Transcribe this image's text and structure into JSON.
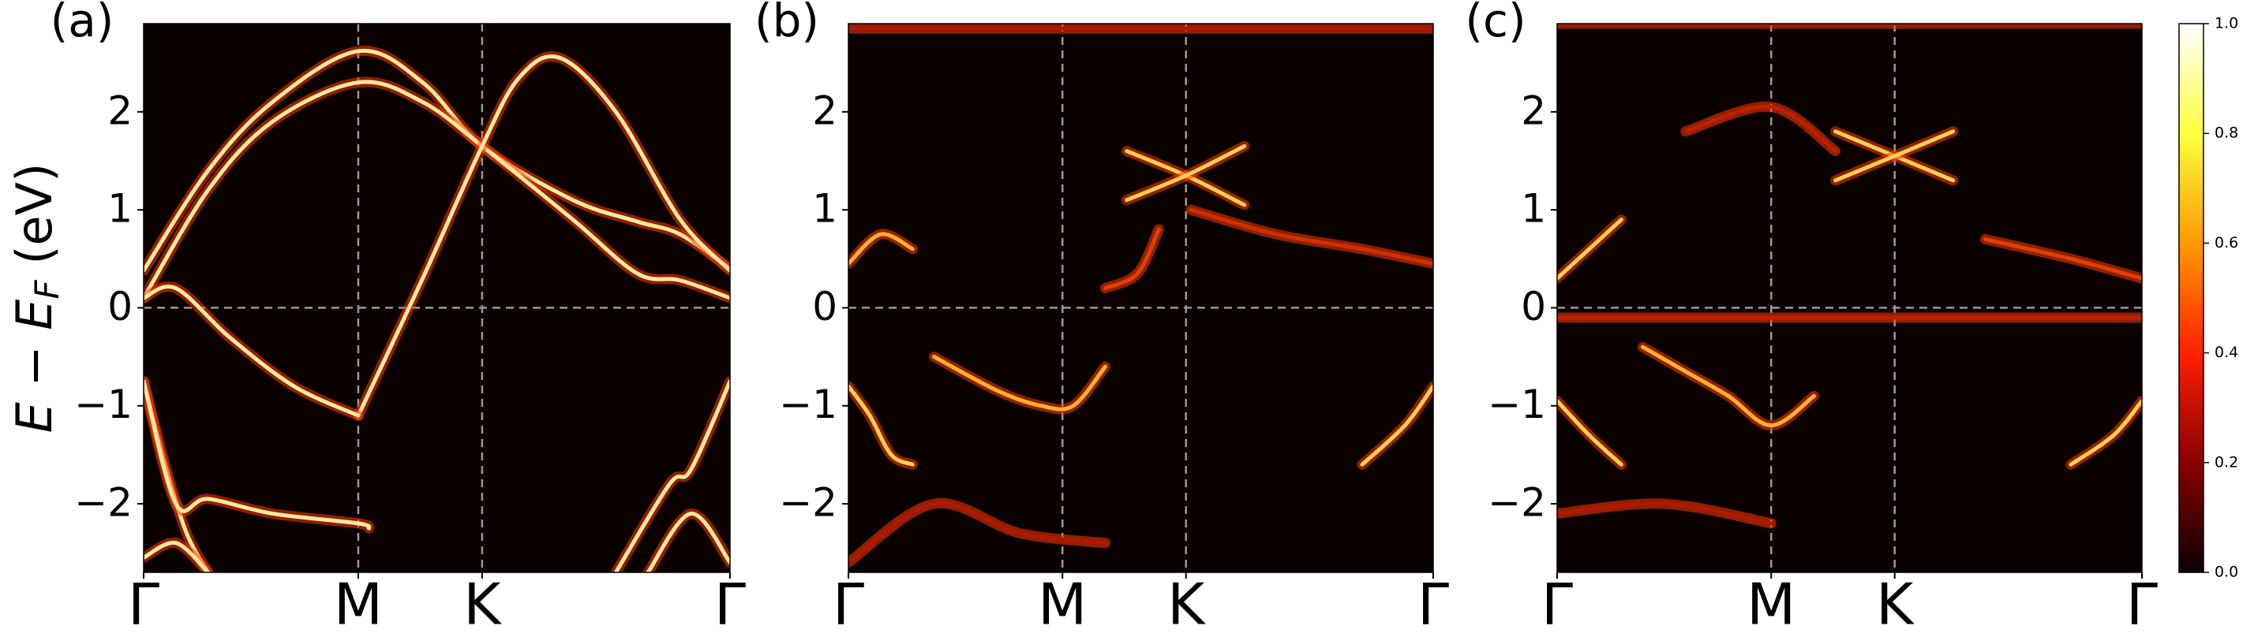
{
  "chart_data": [
    {
      "type": "line",
      "title": "(a)",
      "y_label": {
        "var": "E",
        "minus": " − ",
        "ref": "E",
        "sub": "F",
        "unit": " (eV)"
      },
      "xlim": [
        0,
        2.732
      ],
      "xticks": [
        {
          "value": 0,
          "label": "Γ"
        },
        {
          "value": 1,
          "label": "M"
        },
        {
          "value": 1.577,
          "label": "K"
        },
        {
          "value": 2.732,
          "label": "Γ"
        }
      ],
      "ylim": [
        -2.7,
        2.9
      ],
      "yticks": [
        {
          "value": -2,
          "label": "−2"
        },
        {
          "value": -1,
          "label": "−1"
        },
        0,
        1,
        2
      ],
      "hlines": [
        0
      ],
      "series": [
        {
          "color": "#ffe9a0",
          "x": [
            0,
            0.3,
            0.6,
            1,
            1.3,
            1.577,
            2.0,
            2.3,
            2.5,
            2.732
          ],
          "values": [
            0.38,
            1.4,
            2.1,
            2.62,
            2.3,
            1.65,
            1.1,
            0.88,
            0.75,
            0.4
          ]
        },
        {
          "color": "#ffe9a0",
          "x": [
            0,
            0.3,
            0.6,
            1,
            1.3,
            1.577,
            2.0,
            2.3,
            2.5,
            2.732
          ],
          "values": [
            0.1,
            1.2,
            1.9,
            2.3,
            2.1,
            1.65,
            0.9,
            0.35,
            0.28,
            0.1
          ]
        },
        {
          "color": "#ffe9a0",
          "x": [
            1,
            1.3,
            1.577,
            1.75,
            1.94,
            2.2,
            2.5,
            2.732
          ],
          "values": [
            -1.1,
            0.3,
            1.65,
            2.35,
            2.55,
            2.0,
            0.9,
            0.38
          ]
        },
        {
          "color": "#ffe9a0",
          "x": [
            0,
            0.15,
            0.4,
            0.7,
            1
          ],
          "values": [
            0.1,
            0.2,
            -0.3,
            -0.8,
            -1.1
          ]
        },
        {
          "color": "#ffe9a0",
          "x": [
            0,
            0.1,
            0.2,
            0.3
          ],
          "values": [
            -0.75,
            -1.6,
            -2.3,
            -2.7
          ]
        },
        {
          "color": "#ffe9a0",
          "x": [
            0,
            0.15,
            0.3,
            0.6,
            1,
            1.05
          ],
          "values": [
            -0.75,
            -2.0,
            -1.95,
            -2.1,
            -2.2,
            -2.25
          ]
        },
        {
          "color": "#ffe9a0",
          "x": [
            0,
            0.15,
            0.3
          ],
          "values": [
            -2.55,
            -2.4,
            -2.7
          ]
        },
        {
          "color": "#ffe9a0",
          "x": [
            2.2,
            2.45,
            2.55,
            2.732
          ],
          "values": [
            -2.7,
            -1.8,
            -1.65,
            -0.75
          ]
        },
        {
          "color": "#ffe9a0",
          "x": [
            2.35,
            2.55,
            2.732
          ],
          "values": [
            -2.7,
            -2.1,
            -2.6
          ]
        }
      ]
    },
    {
      "type": "line",
      "title": "(b)",
      "xlim": [
        0,
        2.732
      ],
      "xticks": [
        {
          "value": 0,
          "label": "Γ"
        },
        {
          "value": 1,
          "label": "M"
        },
        {
          "value": 1.577,
          "label": "K"
        },
        {
          "value": 2.732,
          "label": "Γ"
        }
      ],
      "ylim": [
        -2.7,
        2.9
      ],
      "yticks": [
        {
          "value": -2,
          "label": "−2"
        },
        {
          "value": -1,
          "label": "−1"
        },
        0,
        1,
        2
      ],
      "hlines": [
        0
      ],
      "series": [
        {
          "color": "#ffd050",
          "x": [
            0,
            0.1,
            0.2,
            0.3
          ],
          "values": [
            -0.8,
            -1.1,
            -1.5,
            -1.6
          ]
        },
        {
          "color": "#ffb030",
          "x": [
            0.4,
            0.7,
            0.9,
            1.05,
            1.2
          ],
          "values": [
            -0.5,
            -0.85,
            -1.0,
            -1.0,
            -0.6
          ]
        },
        {
          "color": "#ffd050",
          "x": [
            1.3,
            1.577,
            1.85
          ],
          "values": [
            1.6,
            1.35,
            1.05
          ]
        },
        {
          "color": "#ffd050",
          "x": [
            1.3,
            1.577,
            1.85
          ],
          "values": [
            1.1,
            1.35,
            1.65
          ]
        },
        {
          "color": "#ffd050",
          "x": [
            2.4,
            2.6,
            2.732
          ],
          "values": [
            -1.6,
            -1.2,
            -0.8
          ]
        },
        {
          "color": "#b01800",
          "x": [
            0,
            2.732
          ],
          "values": [
            2.85,
            2.85
          ]
        },
        {
          "color": "#d03000",
          "x": [
            1.6,
            2.0,
            2.4,
            2.732
          ],
          "values": [
            1.0,
            0.75,
            0.6,
            0.45
          ]
        },
        {
          "color": "#ffb030",
          "x": [
            0,
            0.15,
            0.3
          ],
          "values": [
            0.45,
            0.75,
            0.6
          ]
        },
        {
          "color": "#b01800",
          "x": [
            0,
            0.4,
            0.8,
            1.2
          ],
          "values": [
            -2.6,
            -2.0,
            -2.3,
            -2.4
          ]
        },
        {
          "color": "#e04000",
          "x": [
            1.2,
            1.35,
            1.45
          ],
          "values": [
            0.2,
            0.35,
            0.8
          ]
        }
      ]
    },
    {
      "type": "line",
      "title": "(c)",
      "xlim": [
        0,
        2.732
      ],
      "xticks": [
        {
          "value": 0,
          "label": "Γ"
        },
        {
          "value": 1,
          "label": "M"
        },
        {
          "value": 1.577,
          "label": "K"
        },
        {
          "value": 2.732,
          "label": "Γ"
        }
      ],
      "ylim": [
        -2.7,
        2.9
      ],
      "yticks": [
        {
          "value": -2,
          "label": "−2"
        },
        {
          "value": -1,
          "label": "−1"
        },
        0,
        1,
        2
      ],
      "hlines": [
        0
      ],
      "series": [
        {
          "color": "#ffd050",
          "x": [
            0,
            0.15,
            0.3
          ],
          "values": [
            0.3,
            0.6,
            0.9
          ]
        },
        {
          "color": "#ffd050",
          "x": [
            0,
            0.15,
            0.3
          ],
          "values": [
            -0.95,
            -1.3,
            -1.6
          ]
        },
        {
          "color": "#ffb030",
          "x": [
            0.4,
            0.6,
            0.8,
            1,
            1.2
          ],
          "values": [
            -0.4,
            -0.65,
            -0.9,
            -1.2,
            -0.9
          ]
        },
        {
          "color": "#ffd050",
          "x": [
            1.3,
            1.577,
            1.85
          ],
          "values": [
            1.8,
            1.55,
            1.3
          ]
        },
        {
          "color": "#ffd050",
          "x": [
            1.3,
            1.577,
            1.85
          ],
          "values": [
            1.3,
            1.55,
            1.8
          ]
        },
        {
          "color": "#ffd050",
          "x": [
            2.4,
            2.6,
            2.732
          ],
          "values": [
            -1.6,
            -1.3,
            -0.95
          ]
        },
        {
          "color": "#e04000",
          "x": [
            2.0,
            2.4,
            2.732
          ],
          "values": [
            0.7,
            0.5,
            0.3
          ]
        },
        {
          "color": "#c02000",
          "x": [
            0,
            2.732
          ],
          "values": [
            -0.1,
            -0.1
          ]
        },
        {
          "color": "#c02000",
          "x": [
            0.6,
            1.0,
            1.3
          ],
          "values": [
            1.8,
            2.05,
            1.6
          ]
        },
        {
          "color": "#b01800",
          "x": [
            0,
            0.5,
            1.0
          ],
          "values": [
            -2.1,
            -2.0,
            -2.2
          ]
        },
        {
          "color": "#b01800",
          "x": [
            0,
            2.732
          ],
          "values": [
            2.9,
            2.9
          ]
        }
      ]
    },
    {
      "type": "colorbar",
      "ylim": [
        0,
        1
      ],
      "yticks": [
        {
          "value": 0,
          "label": "0.0"
        },
        0.2,
        0.4,
        0.6,
        0.8,
        {
          "value": 1,
          "label": "1.0"
        }
      ],
      "colors": [
        "#0b0000",
        "#8a0000",
        "#ff2000",
        "#ff9a00",
        "#ffff40",
        "#ffffff"
      ]
    }
  ]
}
